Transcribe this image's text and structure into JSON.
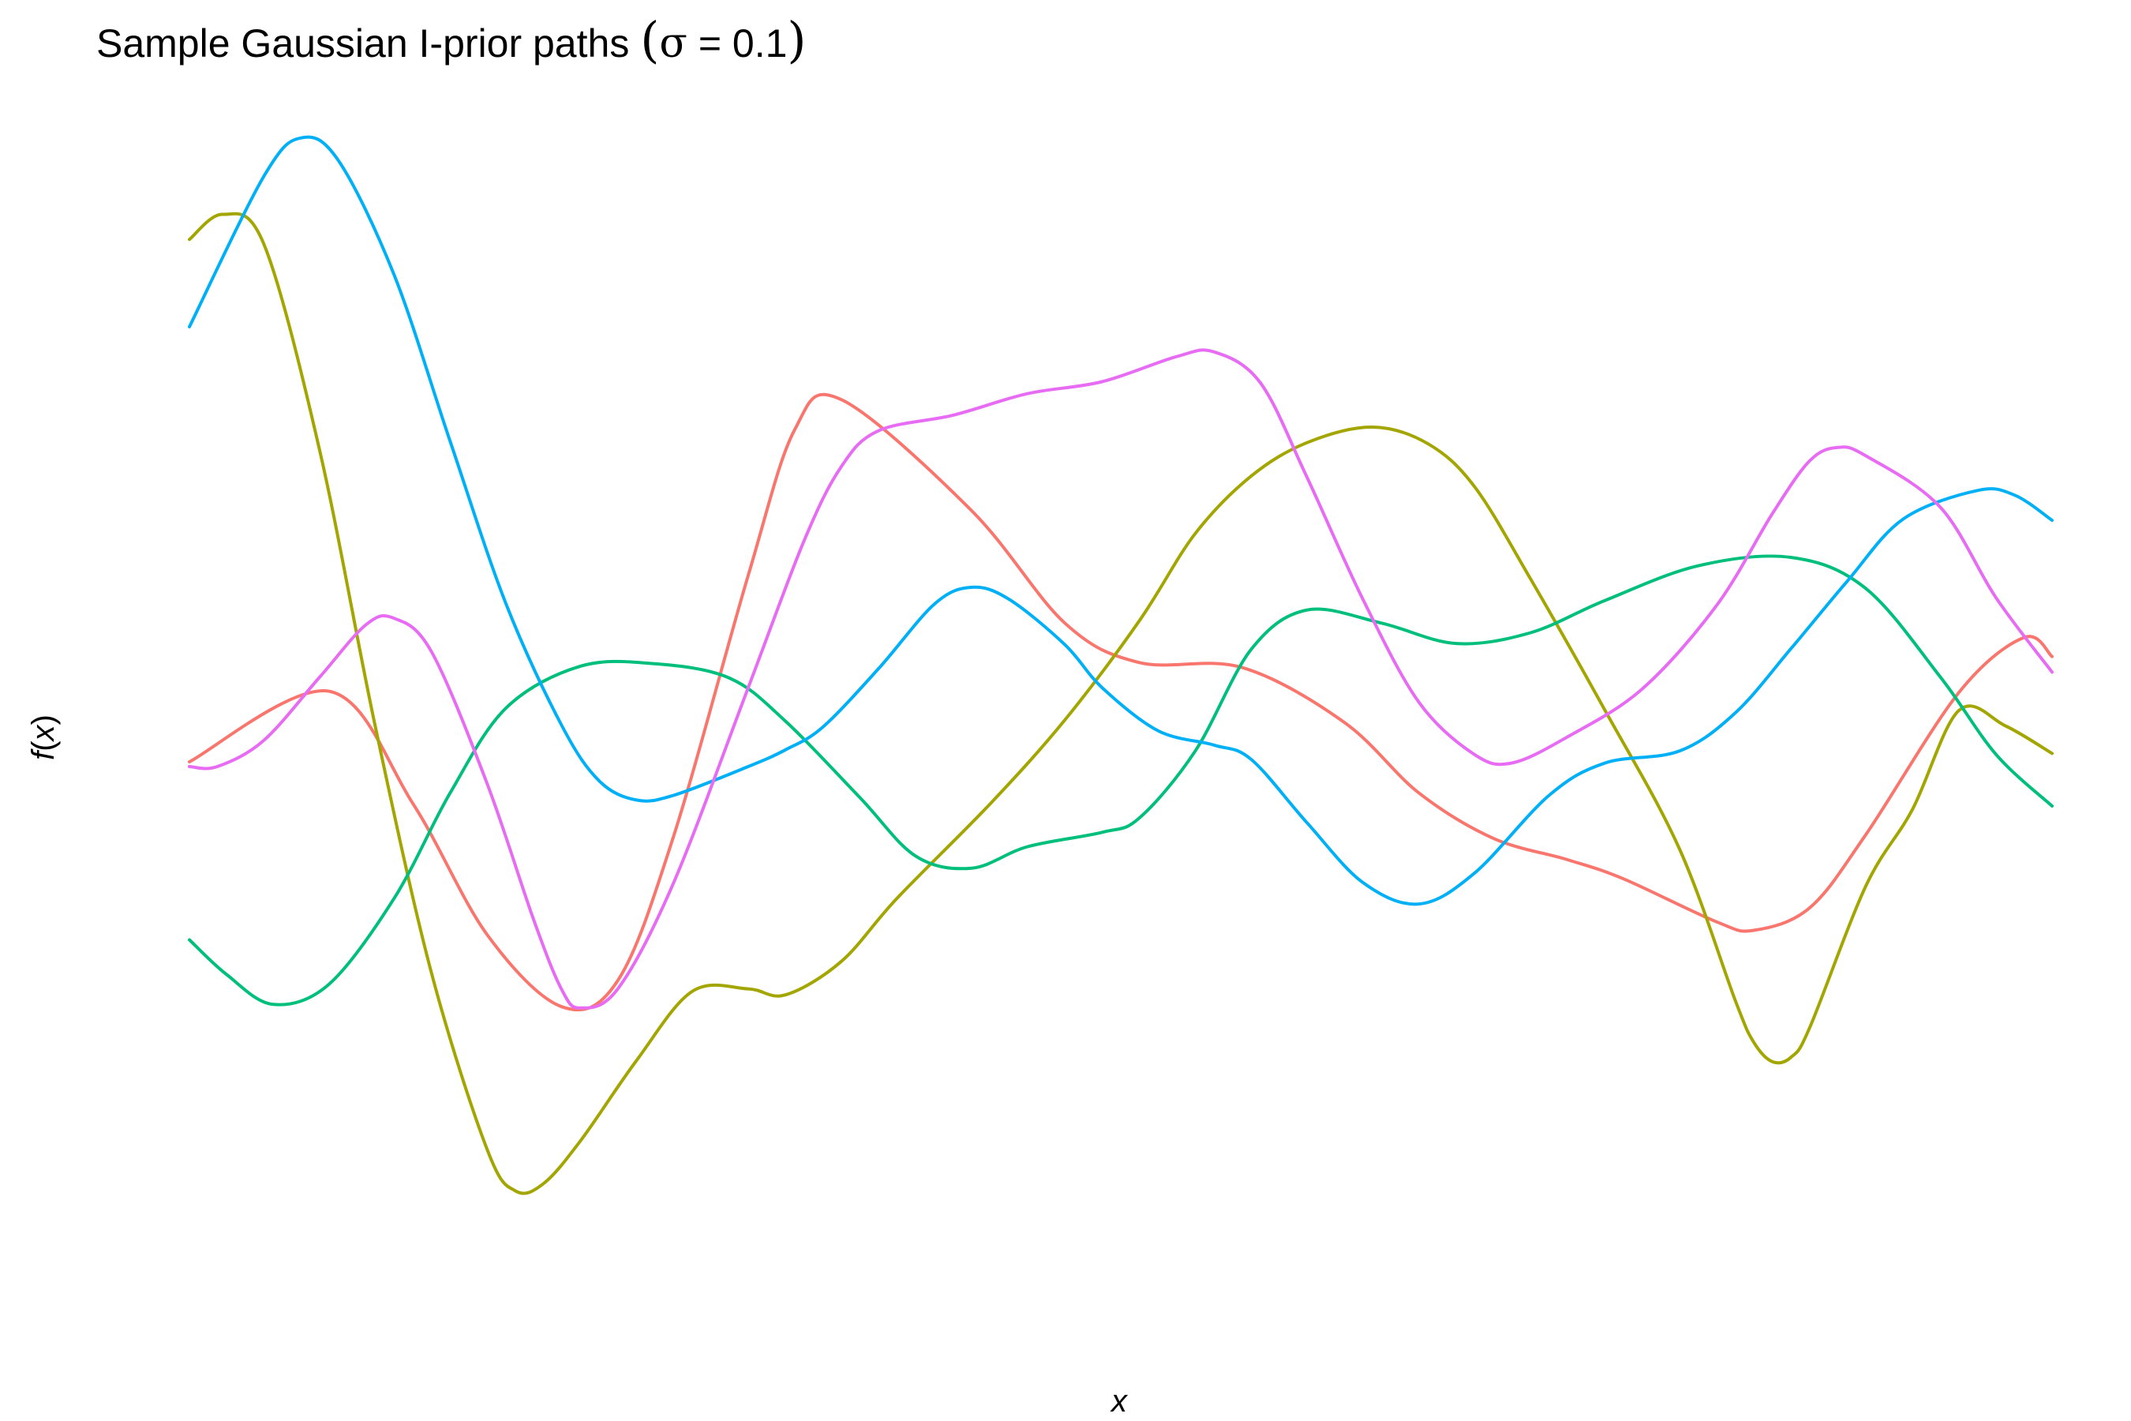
{
  "chart_data": {
    "type": "line",
    "title": {
      "prefix": "Sample Gaussian I-prior paths ",
      "open_paren": "(",
      "sigma": "σ",
      "suffix": " = 0.1",
      "close_paren": ")"
    },
    "xlabel": "x",
    "ylabel": {
      "f": "f",
      "open": "(",
      "x": "x",
      "close": ")"
    },
    "axis_ticks": "none",
    "grid": false,
    "legend": "none",
    "xlim": [
      0,
      1
    ],
    "ylim": [
      0,
      1
    ],
    "colors": [
      "#F8766D",
      "#A3A500",
      "#00BF7D",
      "#00B0F6",
      "#E76BF3"
    ],
    "series": [
      {
        "color": "#F8766D",
        "points": [
          [
            0.0,
            0.467
          ],
          [
            0.075,
            0.526
          ],
          [
            0.12,
            0.432
          ],
          [
            0.16,
            0.322
          ],
          [
            0.2,
            0.262
          ],
          [
            0.23,
            0.284
          ],
          [
            0.26,
            0.405
          ],
          [
            0.3,
            0.623
          ],
          [
            0.325,
            0.745
          ],
          [
            0.35,
            0.77
          ],
          [
            0.42,
            0.677
          ],
          [
            0.47,
            0.583
          ],
          [
            0.51,
            0.55
          ],
          [
            0.565,
            0.546
          ],
          [
            0.62,
            0.5
          ],
          [
            0.66,
            0.441
          ],
          [
            0.7,
            0.403
          ],
          [
            0.74,
            0.385
          ],
          [
            0.77,
            0.369
          ],
          [
            0.82,
            0.333
          ],
          [
            0.84,
            0.326
          ],
          [
            0.87,
            0.345
          ],
          [
            0.9,
            0.406
          ],
          [
            0.95,
            0.525
          ],
          [
            0.985,
            0.571
          ],
          [
            1.0,
            0.555
          ]
        ]
      },
      {
        "color": "#A3A500",
        "points": [
          [
            0.0,
            0.904
          ],
          [
            0.018,
            0.925
          ],
          [
            0.04,
            0.9
          ],
          [
            0.07,
            0.727
          ],
          [
            0.1,
            0.495
          ],
          [
            0.13,
            0.29
          ],
          [
            0.16,
            0.142
          ],
          [
            0.175,
            0.108
          ],
          [
            0.19,
            0.114
          ],
          [
            0.21,
            0.15
          ],
          [
            0.24,
            0.217
          ],
          [
            0.27,
            0.275
          ],
          [
            0.3,
            0.277
          ],
          [
            0.32,
            0.272
          ],
          [
            0.35,
            0.3
          ],
          [
            0.38,
            0.353
          ],
          [
            0.43,
            0.432
          ],
          [
            0.47,
            0.502
          ],
          [
            0.51,
            0.585
          ],
          [
            0.54,
            0.658
          ],
          [
            0.57,
            0.706
          ],
          [
            0.6,
            0.734
          ],
          [
            0.635,
            0.747
          ],
          [
            0.665,
            0.733
          ],
          [
            0.69,
            0.697
          ],
          [
            0.72,
            0.62
          ],
          [
            0.76,
            0.51
          ],
          [
            0.8,
            0.394
          ],
          [
            0.83,
            0.267
          ],
          [
            0.84,
            0.232
          ],
          [
            0.85,
            0.216
          ],
          [
            0.86,
            0.22
          ],
          [
            0.87,
            0.245
          ],
          [
            0.9,
            0.363
          ],
          [
            0.925,
            0.427
          ],
          [
            0.95,
            0.51
          ],
          [
            0.975,
            0.497
          ],
          [
            1.0,
            0.474
          ]
        ]
      },
      {
        "color": "#00BF7D",
        "points": [
          [
            0.0,
            0.318
          ],
          [
            0.02,
            0.289
          ],
          [
            0.045,
            0.264
          ],
          [
            0.075,
            0.281
          ],
          [
            0.11,
            0.353
          ],
          [
            0.14,
            0.441
          ],
          [
            0.17,
            0.512
          ],
          [
            0.21,
            0.547
          ],
          [
            0.25,
            0.549
          ],
          [
            0.29,
            0.537
          ],
          [
            0.32,
            0.501
          ],
          [
            0.36,
            0.437
          ],
          [
            0.39,
            0.388
          ],
          [
            0.42,
            0.378
          ],
          [
            0.45,
            0.396
          ],
          [
            0.49,
            0.408
          ],
          [
            0.51,
            0.42
          ],
          [
            0.54,
            0.476
          ],
          [
            0.57,
            0.561
          ],
          [
            0.6,
            0.594
          ],
          [
            0.64,
            0.583
          ],
          [
            0.68,
            0.566
          ],
          [
            0.72,
            0.575
          ],
          [
            0.76,
            0.602
          ],
          [
            0.81,
            0.631
          ],
          [
            0.86,
            0.638
          ],
          [
            0.9,
            0.612
          ],
          [
            0.94,
            0.538
          ],
          [
            0.97,
            0.473
          ],
          [
            1.0,
            0.43
          ]
        ]
      },
      {
        "color": "#00B0F6",
        "points": [
          [
            0.0,
            0.831
          ],
          [
            0.04,
            0.957
          ],
          [
            0.06,
            0.989
          ],
          [
            0.08,
            0.97
          ],
          [
            0.11,
            0.874
          ],
          [
            0.14,
            0.735
          ],
          [
            0.17,
            0.599
          ],
          [
            0.2,
            0.497
          ],
          [
            0.22,
            0.451
          ],
          [
            0.24,
            0.435
          ],
          [
            0.26,
            0.439
          ],
          [
            0.3,
            0.463
          ],
          [
            0.32,
            0.477
          ],
          [
            0.34,
            0.496
          ],
          [
            0.37,
            0.545
          ],
          [
            0.4,
            0.599
          ],
          [
            0.42,
            0.613
          ],
          [
            0.44,
            0.603
          ],
          [
            0.47,
            0.565
          ],
          [
            0.49,
            0.529
          ],
          [
            0.52,
            0.493
          ],
          [
            0.55,
            0.481
          ],
          [
            0.57,
            0.469
          ],
          [
            0.6,
            0.416
          ],
          [
            0.63,
            0.366
          ],
          [
            0.66,
            0.348
          ],
          [
            0.69,
            0.374
          ],
          [
            0.73,
            0.439
          ],
          [
            0.76,
            0.466
          ],
          [
            0.8,
            0.476
          ],
          [
            0.83,
            0.508
          ],
          [
            0.86,
            0.562
          ],
          [
            0.89,
            0.618
          ],
          [
            0.92,
            0.67
          ],
          [
            0.96,
            0.694
          ],
          [
            0.98,
            0.69
          ],
          [
            1.0,
            0.669
          ]
        ]
      },
      {
        "color": "#E76BF3",
        "points": [
          [
            0.0,
            0.463
          ],
          [
            0.015,
            0.463
          ],
          [
            0.04,
            0.485
          ],
          [
            0.07,
            0.538
          ],
          [
            0.095,
            0.582
          ],
          [
            0.11,
            0.587
          ],
          [
            0.13,
            0.559
          ],
          [
            0.16,
            0.448
          ],
          [
            0.185,
            0.334
          ],
          [
            0.2,
            0.276
          ],
          [
            0.21,
            0.261
          ],
          [
            0.23,
            0.277
          ],
          [
            0.26,
            0.366
          ],
          [
            0.3,
            0.529
          ],
          [
            0.33,
            0.652
          ],
          [
            0.35,
            0.714
          ],
          [
            0.37,
            0.744
          ],
          [
            0.41,
            0.757
          ],
          [
            0.45,
            0.775
          ],
          [
            0.49,
            0.785
          ],
          [
            0.53,
            0.806
          ],
          [
            0.55,
            0.81
          ],
          [
            0.575,
            0.784
          ],
          [
            0.6,
            0.705
          ],
          [
            0.63,
            0.603
          ],
          [
            0.66,
            0.517
          ],
          [
            0.69,
            0.473
          ],
          [
            0.71,
            0.466
          ],
          [
            0.74,
            0.488
          ],
          [
            0.78,
            0.528
          ],
          [
            0.82,
            0.598
          ],
          [
            0.85,
            0.675
          ],
          [
            0.87,
            0.719
          ],
          [
            0.885,
            0.73
          ],
          [
            0.9,
            0.723
          ],
          [
            0.94,
            0.68
          ],
          [
            0.97,
            0.604
          ],
          [
            1.0,
            0.542
          ]
        ]
      }
    ]
  }
}
